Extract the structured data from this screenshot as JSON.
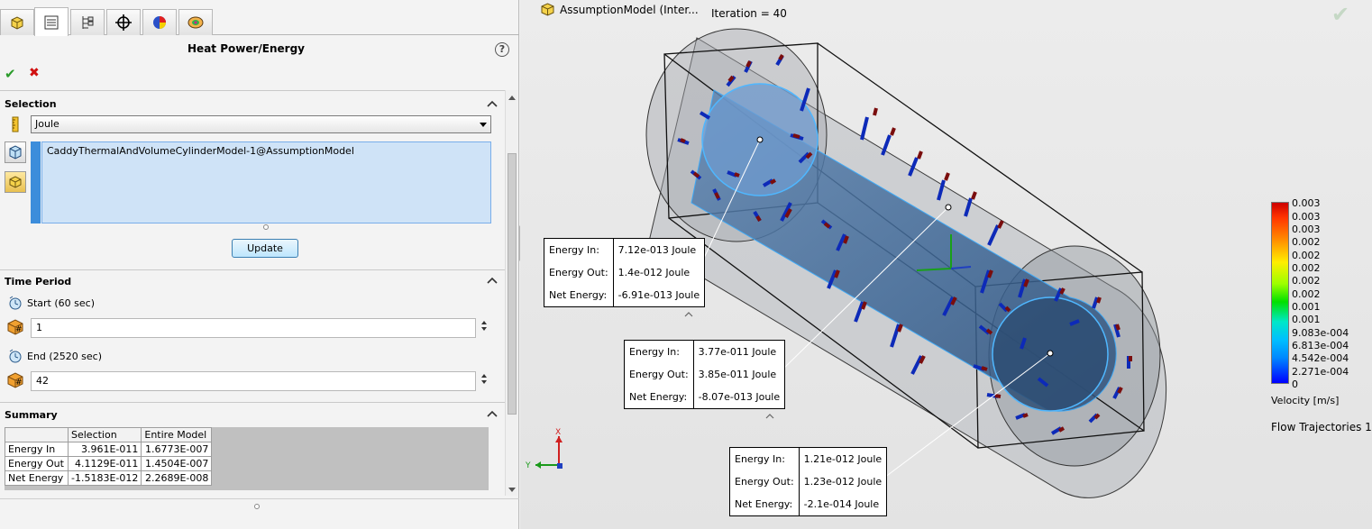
{
  "property_manager": {
    "title": "Heat Power/Energy",
    "help_label": "?",
    "tabs": [
      "feature-manager-icon",
      "property-manager-icon",
      "configuration-manager-icon",
      "dimxpert-icon",
      "display-manager-icon",
      "flow-simulation-icon"
    ],
    "selection": {
      "header": "Selection",
      "unit_value": "Joule",
      "selected_item": "CaddyThermalAndVolumeCylinderModel-1@AssumptionModel",
      "update_label": "Update"
    },
    "time_period": {
      "header": "Time Period",
      "start_label": "Start (60 sec)",
      "start_value": "1",
      "end_label": "End (2520 sec)",
      "end_value": "42"
    },
    "summary": {
      "header": "Summary",
      "columns": [
        "",
        "Selection",
        "Entire Model"
      ],
      "rows": [
        {
          "label": "Energy In",
          "selection": "3.961E-011",
          "entire": "1.6773E-007"
        },
        {
          "label": "Energy Out",
          "selection": "4.1129E-011",
          "entire": "1.4504E-007"
        },
        {
          "label": "Net Energy",
          "selection": "-1.5183E-012",
          "entire": "2.2689E-008"
        }
      ]
    }
  },
  "viewport": {
    "model_name": "AssumptionModel  (Inter...",
    "iteration": "Iteration = 40",
    "probes": [
      {
        "energy_in_label": "Energy In:",
        "energy_in": "7.12e-013 Joule",
        "energy_out_label": "Energy Out:",
        "energy_out": "1.4e-012 Joule",
        "net_label": "Net Energy:",
        "net": "-6.91e-013 Joule"
      },
      {
        "energy_in_label": "Energy In:",
        "energy_in": "3.77e-011 Joule",
        "energy_out_label": "Energy Out:",
        "energy_out": "3.85e-011 Joule",
        "net_label": "Net Energy:",
        "net": "-8.07e-013 Joule"
      },
      {
        "energy_in_label": "Energy In:",
        "energy_in": "1.21e-012 Joule",
        "energy_out_label": "Energy Out:",
        "energy_out": "1.23e-012 Joule",
        "net_label": "Net Energy:",
        "net": "-2.1e-014 Joule"
      }
    ],
    "legend": {
      "ticks": [
        "0.003",
        "0.003",
        "0.003",
        "0.002",
        "0.002",
        "0.002",
        "0.002",
        "0.002",
        "0.001",
        "0.001",
        "9.083e-004",
        "6.813e-004",
        "4.542e-004",
        "2.271e-004",
        "0"
      ],
      "title": "Velocity [m/s]",
      "trajectories_label": "Flow Trajectories 1",
      "colors": [
        "#cc0000",
        "#ff8800",
        "#ffee00",
        "#00e000",
        "#00e8c8",
        "#0000ff"
      ]
    },
    "triad": {
      "x_label": "X",
      "y_label": "Y"
    }
  }
}
